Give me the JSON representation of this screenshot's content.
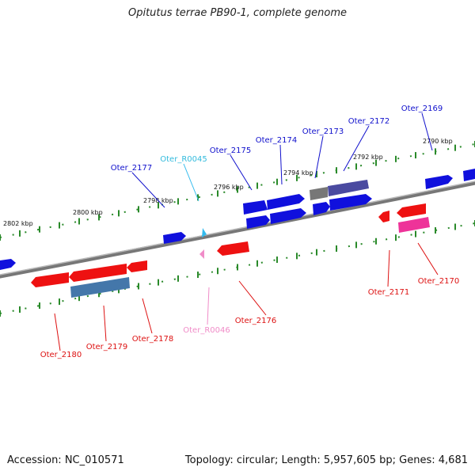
{
  "title": "Opitutus terrae PB90-1, complete genome",
  "footer": {
    "accession": "Accession: NC_010571",
    "summary": "Topology: circular; Length: 5,957,605 bp; Genes: 4,681"
  },
  "colors": {
    "plus_gene": "#1010dd",
    "minus_gene": "#ee1111",
    "rna": "#33bbee",
    "rna_minus": "#f08cc8",
    "backbone": "#888888",
    "ticks": "#228822"
  },
  "ticks": [
    "2790 kbp",
    "2792 kbp",
    "2794 kbp",
    "2796 kbp",
    "2798 kbp",
    "2800 kbp",
    "2802 kbp"
  ],
  "genes_top": [
    {
      "label": "Oter_2169",
      "color": "#1010cc"
    },
    {
      "label": "Oter_2172",
      "color": "#1010cc"
    },
    {
      "label": "Oter_2173",
      "color": "#1010cc"
    },
    {
      "label": "Oter_2174",
      "color": "#1010cc"
    },
    {
      "label": "Oter_2175",
      "color": "#1010cc"
    },
    {
      "label": "Oter_R0045",
      "color": "#33bbdd"
    },
    {
      "label": "Oter_2177",
      "color": "#1010cc"
    }
  ],
  "genes_bottom": [
    {
      "label": "Oter_2170",
      "color": "#dd1111"
    },
    {
      "label": "Oter_2171",
      "color": "#dd1111"
    },
    {
      "label": "Oter_2176",
      "color": "#dd1111"
    },
    {
      "label": "Oter_R0046",
      "color": "#f08cc8"
    },
    {
      "label": "Oter_2178",
      "color": "#dd1111"
    },
    {
      "label": "Oter_2179",
      "color": "#dd1111"
    },
    {
      "label": "Oter_2180",
      "color": "#dd1111"
    }
  ]
}
